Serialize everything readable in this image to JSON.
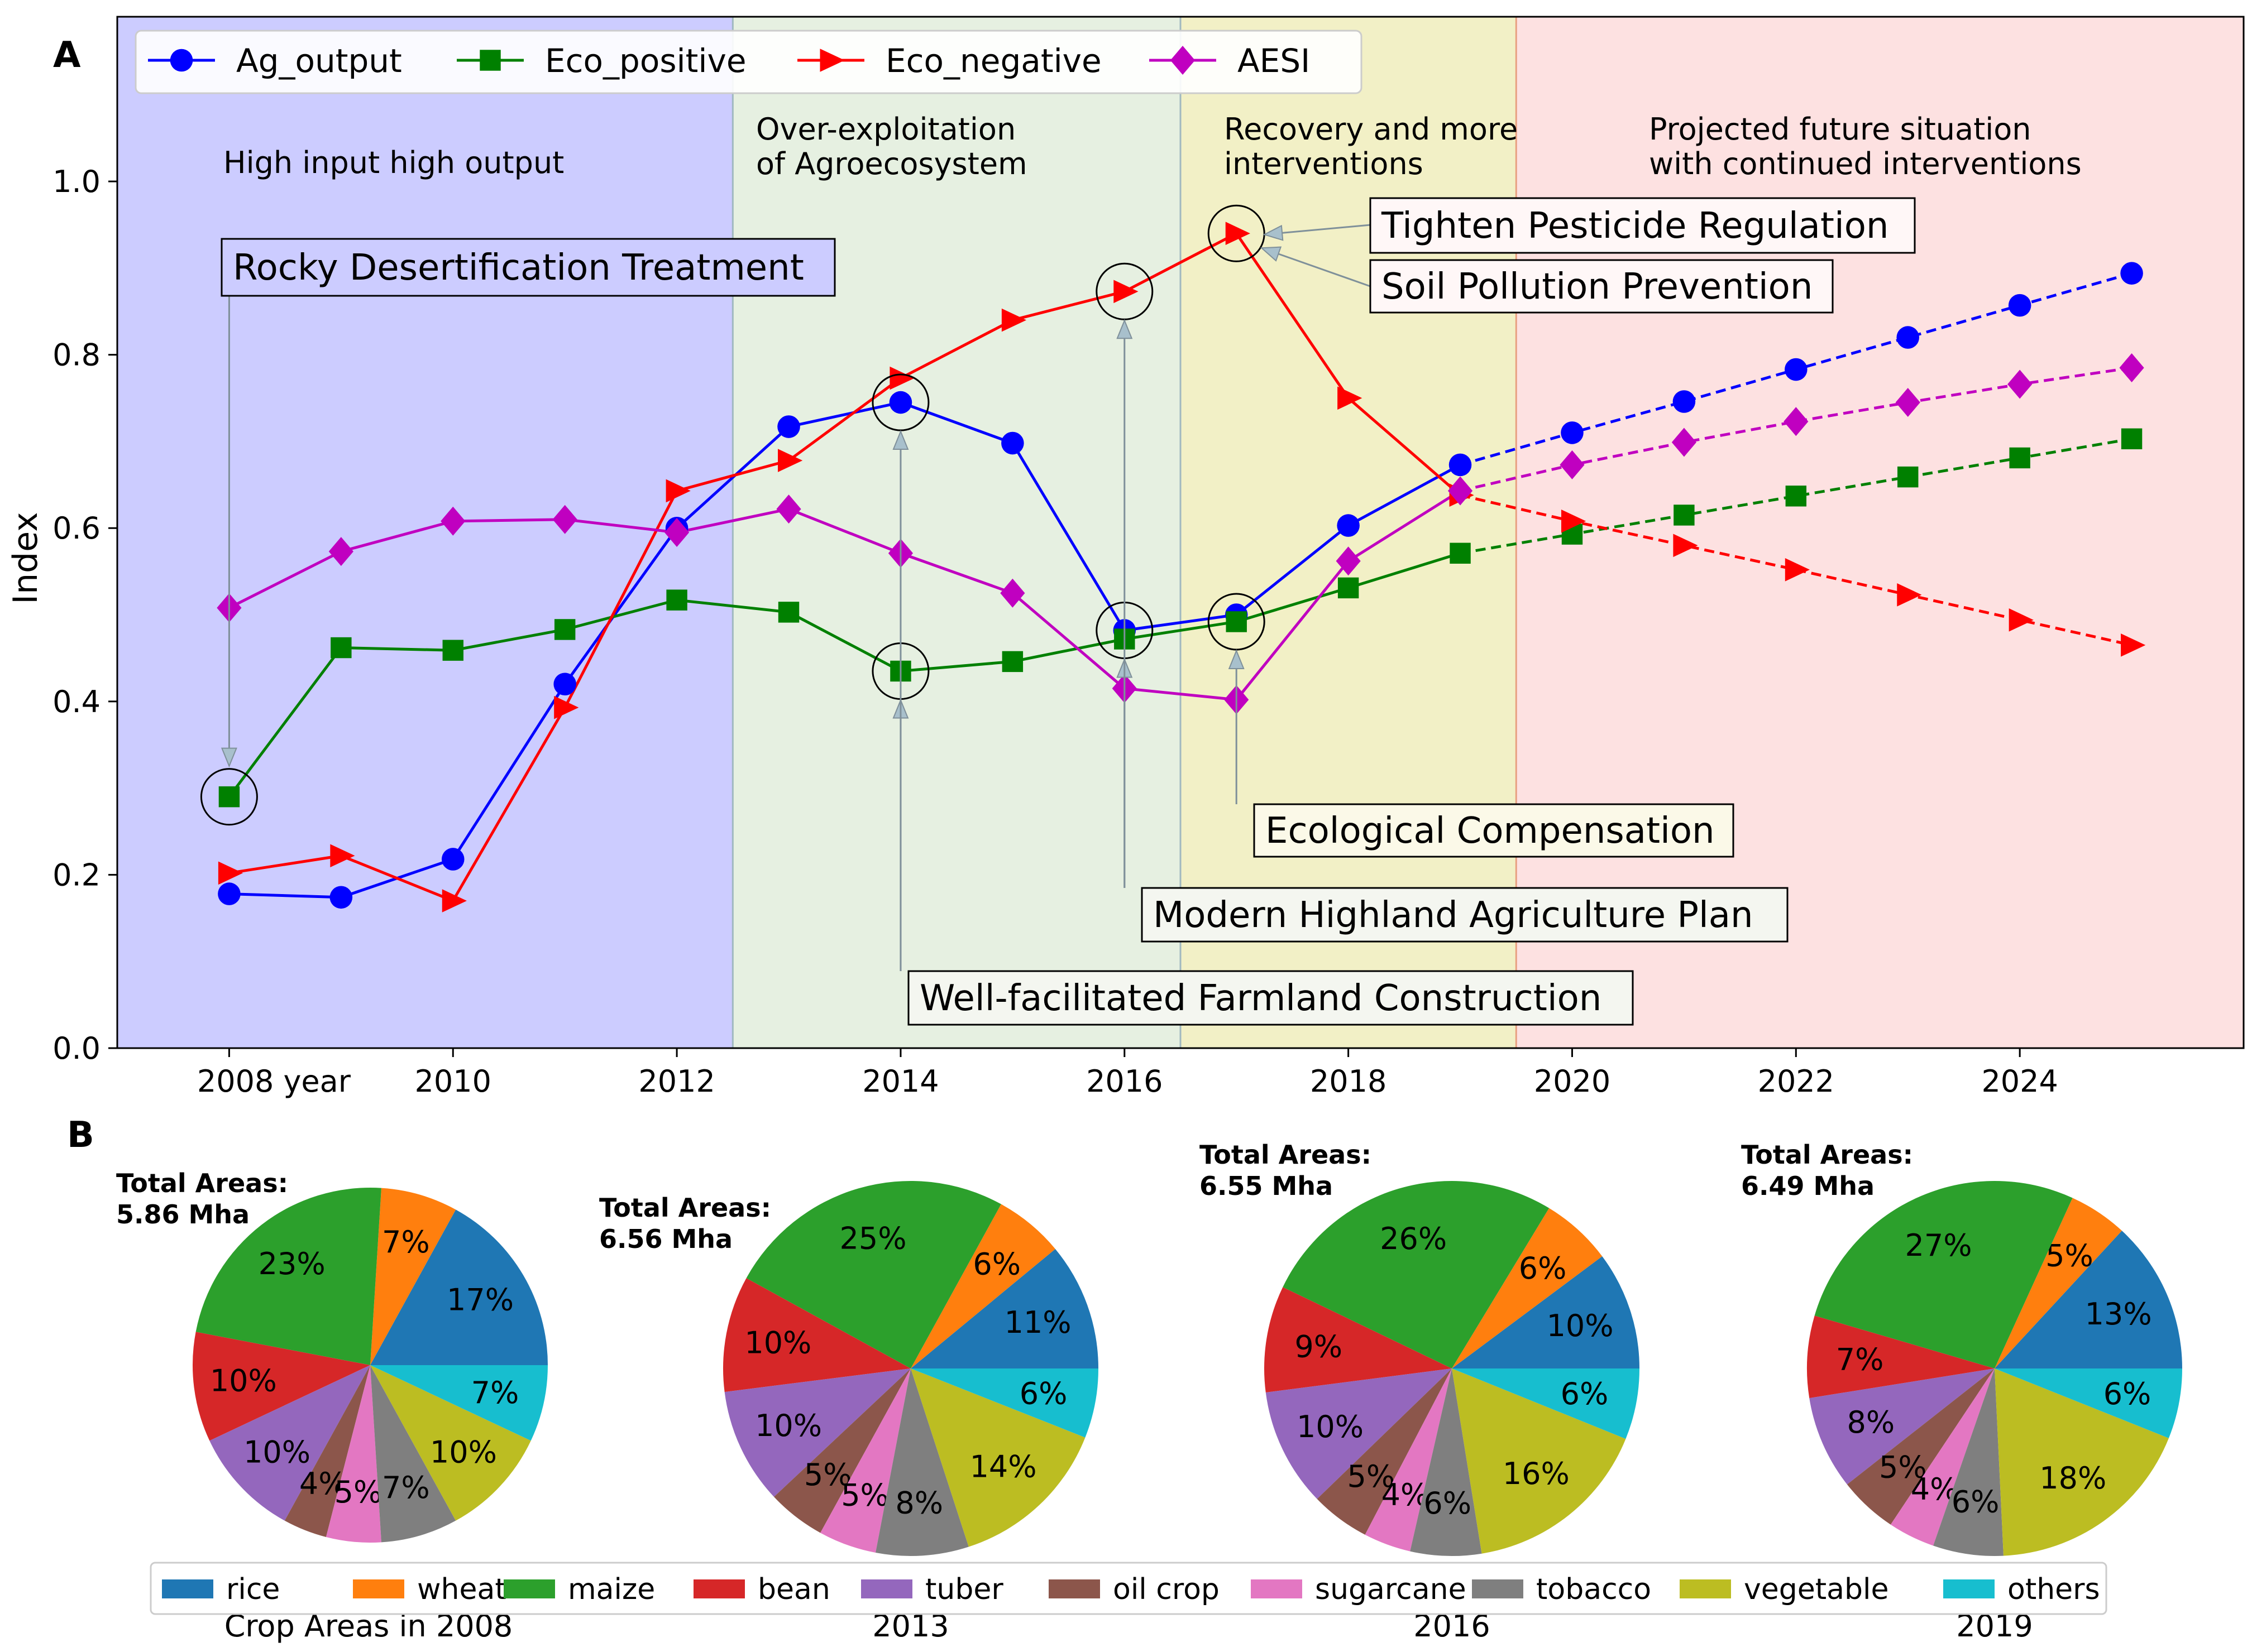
{
  "chart_data": [
    {
      "panel_label": "A",
      "type": "line",
      "ylabel": "Index",
      "xlim": [
        2007,
        2026
      ],
      "ylim": [
        0.0,
        1.19
      ],
      "xticks": [
        2008,
        2010,
        2012,
        2014,
        2016,
        2018,
        2020,
        2022,
        2024
      ],
      "xtick_labels": [
        "2008  year",
        "2010",
        "2012",
        "2014",
        "2016",
        "2018",
        "2020",
        "2022",
        "2024"
      ],
      "yticks": [
        0.0,
        0.2,
        0.4,
        0.6,
        0.8,
        1.0
      ],
      "ytick_labels": [
        "0.0",
        "0.2",
        "0.4",
        "0.6",
        "0.8",
        "1.0"
      ],
      "x": [
        2008,
        2009,
        2010,
        2011,
        2012,
        2013,
        2014,
        2015,
        2016,
        2017,
        2018,
        2019,
        2020,
        2021,
        2022,
        2023,
        2024,
        2025
      ],
      "projection_start": 2019,
      "series": [
        {
          "name": "Ag_output",
          "color": "#0000ff",
          "marker": "circle",
          "values": [
            0.178,
            0.174,
            0.218,
            0.42,
            0.6,
            0.717,
            0.745,
            0.698,
            0.482,
            0.5,
            0.603,
            0.673,
            0.71,
            0.746,
            0.783,
            0.82,
            0.857,
            0.894
          ]
        },
        {
          "name": "Eco_positive",
          "color": "#008000",
          "marker": "square",
          "values": [
            0.29,
            0.462,
            0.459,
            0.483,
            0.517,
            0.503,
            0.435,
            0.446,
            0.472,
            0.492,
            0.531,
            0.571,
            0.593,
            0.615,
            0.637,
            0.659,
            0.681,
            0.703
          ]
        },
        {
          "name": "Eco_negative",
          "color": "#ff0000",
          "marker": "triangle-right",
          "values": [
            0.202,
            0.222,
            0.17,
            0.393,
            0.643,
            0.678,
            0.773,
            0.84,
            0.873,
            0.94,
            0.75,
            0.638,
            0.608,
            0.58,
            0.552,
            0.523,
            0.494,
            0.465
          ]
        },
        {
          "name": "AESI",
          "color": "#c000c0",
          "marker": "diamond",
          "values": [
            0.508,
            0.573,
            0.608,
            0.61,
            0.595,
            0.622,
            0.571,
            0.525,
            0.415,
            0.402,
            0.562,
            0.643,
            0.673,
            0.699,
            0.723,
            0.745,
            0.766,
            0.785
          ]
        }
      ],
      "phases": [
        {
          "label_lines": [
            "High input high output"
          ],
          "from": 2007,
          "to": 2012.5,
          "color": "#ccccff"
        },
        {
          "label_lines": [
            "Over-exploitation",
            "of Agroecosystem"
          ],
          "from": 2012.5,
          "to": 2016.5,
          "color": "#e6f0e1"
        },
        {
          "label_lines": [
            "Recovery and more",
            "interventions"
          ],
          "from": 2016.5,
          "to": 2019.5,
          "color": "#f2f0c6"
        },
        {
          "label_lines": [
            "Projected future situation",
            "with continued interventions"
          ],
          "from": 2019.5,
          "to": 2026,
          "color": "#fde1e1"
        }
      ],
      "annotations": [
        {
          "text": "Rocky Desertification Treatment",
          "x": 2008,
          "y": 0.29
        },
        {
          "text": "Well-facilitated Farmland Construction",
          "x": 2014,
          "y": 0.745
        },
        {
          "text": "Well-facilitated Farmland Construction",
          "x": 2014,
          "y": 0.435
        },
        {
          "text": "Modern Highland Agriculture Plan",
          "x": 2016,
          "y": 0.873
        },
        {
          "text": "Modern Highland Agriculture Plan",
          "x": 2016,
          "y": 0.482
        },
        {
          "text": "Ecological Compensation",
          "x": 2017,
          "y": 0.492
        },
        {
          "text": "Tighten Pesticide Regulation",
          "x": 2017,
          "y": 0.94
        },
        {
          "text": "Soil Pollution Prevention",
          "x": 2017,
          "y": 0.94
        }
      ],
      "annotation_boxes": [
        "Rocky Desertification Treatment",
        "Tighten Pesticide Regulation",
        "Soil Pollution Prevention",
        "Ecological Compensation",
        "Modern Highland Agriculture Plan",
        "Well-facilitated Farmland Construction"
      ]
    },
    {
      "panel_label": "B",
      "type": "pie",
      "categories": [
        "rice",
        "wheat",
        "maize",
        "bean",
        "tuber",
        "oil crop",
        "sugarcane",
        "tobacco",
        "vegetable",
        "others"
      ],
      "colors": [
        "#1f77b4",
        "#ff7f0e",
        "#2ca02c",
        "#d62728",
        "#9467bd",
        "#8c564b",
        "#e377c2",
        "#7f7f7f",
        "#bcbd22",
        "#17becf"
      ],
      "pies": [
        {
          "caption": "Crop Areas in 2008",
          "total_label": "Total Areas:",
          "total_value": "5.86 Mha",
          "values": [
            17,
            7,
            23,
            10,
            10,
            4,
            5,
            7,
            10,
            7
          ],
          "labels": [
            "17%",
            "7%",
            "23%",
            "10%",
            "10%",
            "4%",
            "5%",
            "7%",
            "10%",
            "7%"
          ]
        },
        {
          "caption": "2013",
          "total_label": "Total Areas:",
          "total_value": "6.56 Mha",
          "values": [
            11,
            6,
            25,
            10,
            10,
            5,
            5,
            8,
            14,
            6
          ],
          "labels": [
            "11%",
            "6%",
            "25%",
            "10%",
            "10%",
            "5%",
            "5%",
            "8%",
            "14%",
            "6%"
          ]
        },
        {
          "caption": "2016",
          "total_label": "Total Areas:",
          "total_value": "6.55 Mha",
          "values": [
            10,
            6,
            26,
            9,
            10,
            5,
            4,
            6,
            16,
            6
          ],
          "labels": [
            "10%",
            "6%",
            "26%",
            "9%",
            "10%",
            "5%",
            "4%",
            "6%",
            "16%",
            "6%"
          ]
        },
        {
          "caption": "2019",
          "total_label": "Total Areas:",
          "total_value": "6.49 Mha",
          "values": [
            13,
            5,
            27,
            7,
            8,
            5,
            4,
            6,
            18,
            6
          ],
          "labels": [
            "13%",
            "5%",
            "27%",
            "7%",
            "8%",
            "5%",
            "4%",
            "6%",
            "18%",
            "6%"
          ]
        }
      ]
    }
  ]
}
